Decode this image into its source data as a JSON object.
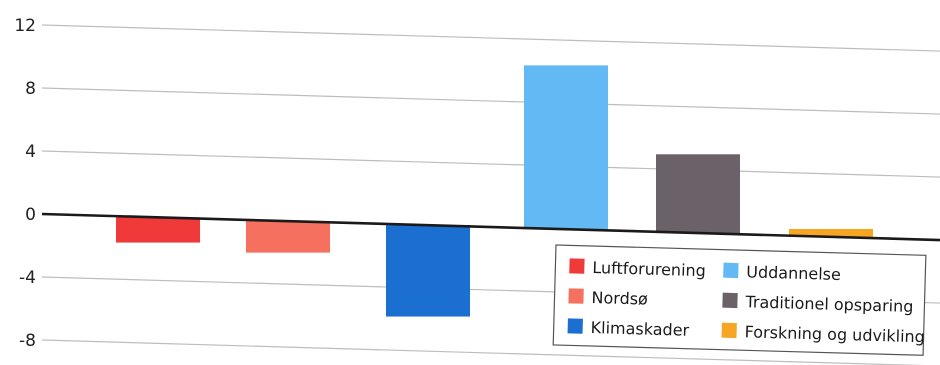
{
  "chart_data": {
    "type": "bar",
    "title": "",
    "xlabel": "",
    "ylabel": "",
    "ylim": [
      -8,
      12
    ],
    "yticks": [
      12,
      8,
      4,
      0,
      -4,
      -8
    ],
    "grid": true,
    "legend_position": "bottom-right",
    "series": [
      {
        "name": "Luftforurening",
        "value": -1.6,
        "color": "#f03a3a"
      },
      {
        "name": "Nordsø",
        "value": -2.0,
        "color": "#f5705e"
      },
      {
        "name": "Klimaskader",
        "value": -5.8,
        "color": "#1b6fd0"
      },
      {
        "name": "Uddannelse",
        "value": 10.4,
        "color": "#63b9f4"
      },
      {
        "name": "Traditionel opsparing",
        "value": 5.0,
        "color": "#6b6168"
      },
      {
        "name": "Forskning og udvikling",
        "value": 0.5,
        "color": "#f7a623"
      }
    ],
    "legend_order": [
      0,
      3,
      1,
      4,
      2,
      5
    ]
  }
}
